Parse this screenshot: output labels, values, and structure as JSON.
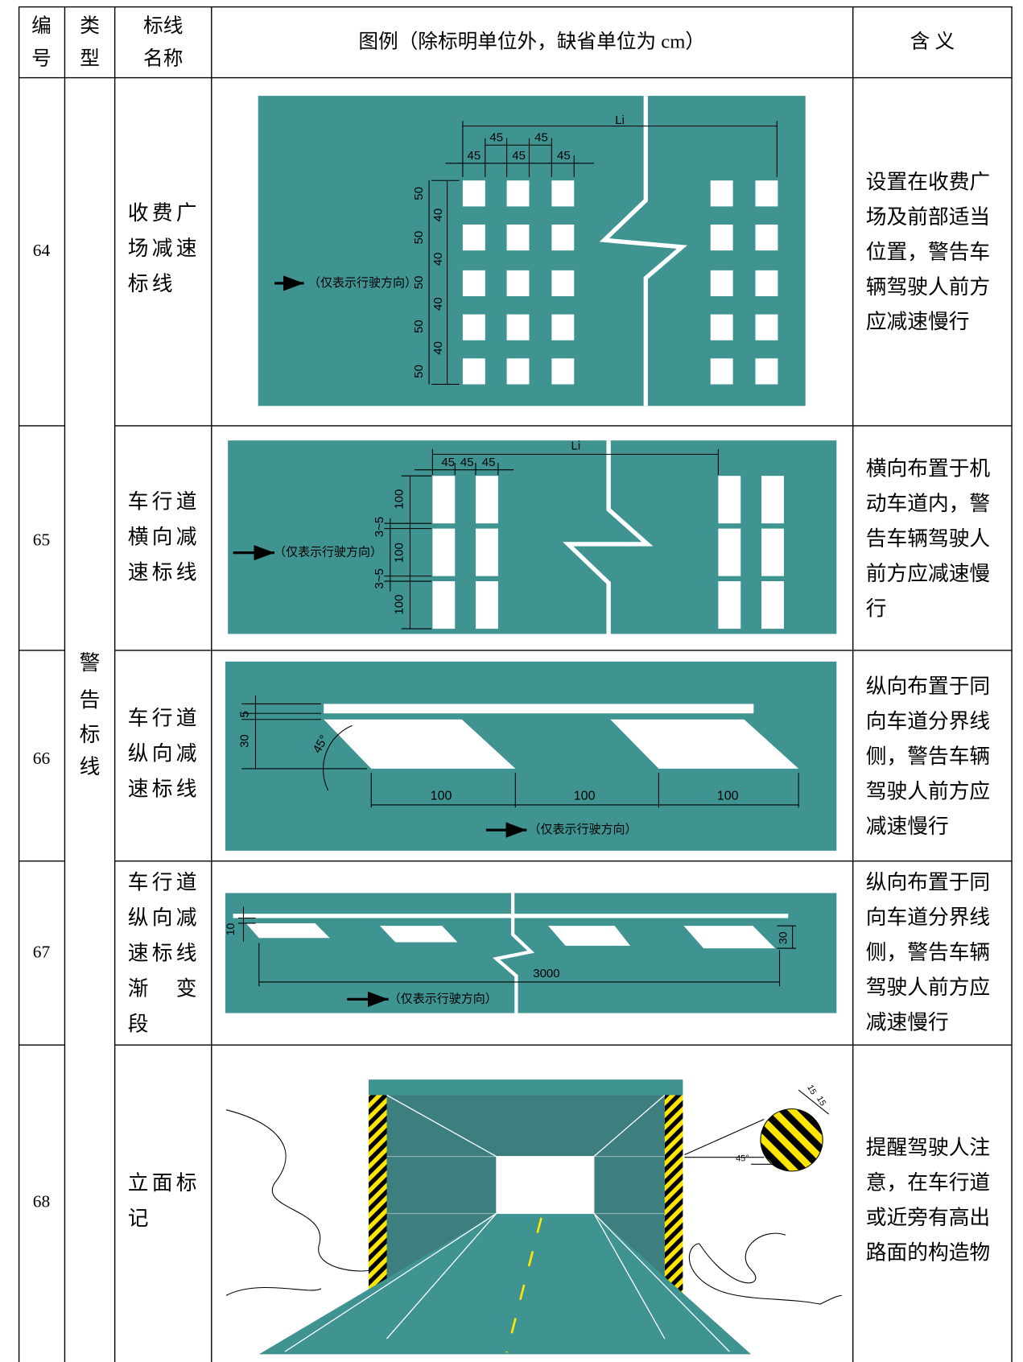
{
  "header": {
    "cells": [
      [
        "编",
        "号"
      ],
      [
        "类",
        "型"
      ],
      [
        "标线",
        "名称"
      ],
      [
        "图例（除标明单位外，缺省单位为 cm）"
      ],
      [
        "含 义"
      ]
    ]
  },
  "type": [
    "警",
    "告",
    "标",
    "线"
  ],
  "rows": [
    {
      "id": "64",
      "name": [
        "收费广",
        "场减速",
        "标线"
      ],
      "meaning": [
        "设置在收费广",
        "场及前部适当",
        "位置，警告车",
        "辆驾驶人前方",
        "应减速慢行"
      ],
      "figure": {
        "labels": [
          "Li",
          "45",
          "45",
          "45",
          "45",
          "45",
          "50",
          "40",
          "50",
          "40",
          "50",
          "40",
          "50",
          "40",
          "50",
          "（仅表示行驶方向）"
        ]
      }
    },
    {
      "id": "65",
      "name": [
        "车行道",
        "横向减",
        "速标线"
      ],
      "meaning": [
        "横向布置于机",
        "动车道内，警",
        "告车辆驾驶人",
        "前方应减速慢",
        "行"
      ],
      "figure": {
        "labels": [
          "Li",
          "45",
          "45",
          "45",
          "100",
          "3~5",
          "100",
          "3~5",
          "100",
          "（仅表示行驶方向）"
        ]
      }
    },
    {
      "id": "66",
      "name": [
        "车行道",
        "纵向减",
        "速标线"
      ],
      "meaning": [
        "纵向布置于同",
        "向车道分界线",
        "侧，警告车辆",
        "驾驶人前方应",
        "减速慢行"
      ],
      "figure": {
        "labels": [
          "5",
          "30",
          "45°",
          "100",
          "100",
          "100",
          "（仅表示行驶方向）"
        ]
      }
    },
    {
      "id": "67",
      "name": [
        "车行道",
        "纵向减",
        "速标线",
        "渐　变",
        "段"
      ],
      "meaning": [
        "纵向布置于同",
        "向车道分界线",
        "侧，警告车辆",
        "驾驶人前方应",
        "减速慢行"
      ],
      "figure": {
        "labels": [
          "10",
          "30",
          "3000",
          "（仅表示行驶方向）"
        ]
      }
    },
    {
      "id": "68",
      "name": [
        "立面标",
        "记"
      ],
      "meaning": [
        "提醒驾驶人注",
        "意，在车行道",
        "或近旁有高出",
        "路面的构造物"
      ],
      "figure": {
        "labels": [
          "15",
          "15",
          "45°"
        ]
      }
    }
  ]
}
